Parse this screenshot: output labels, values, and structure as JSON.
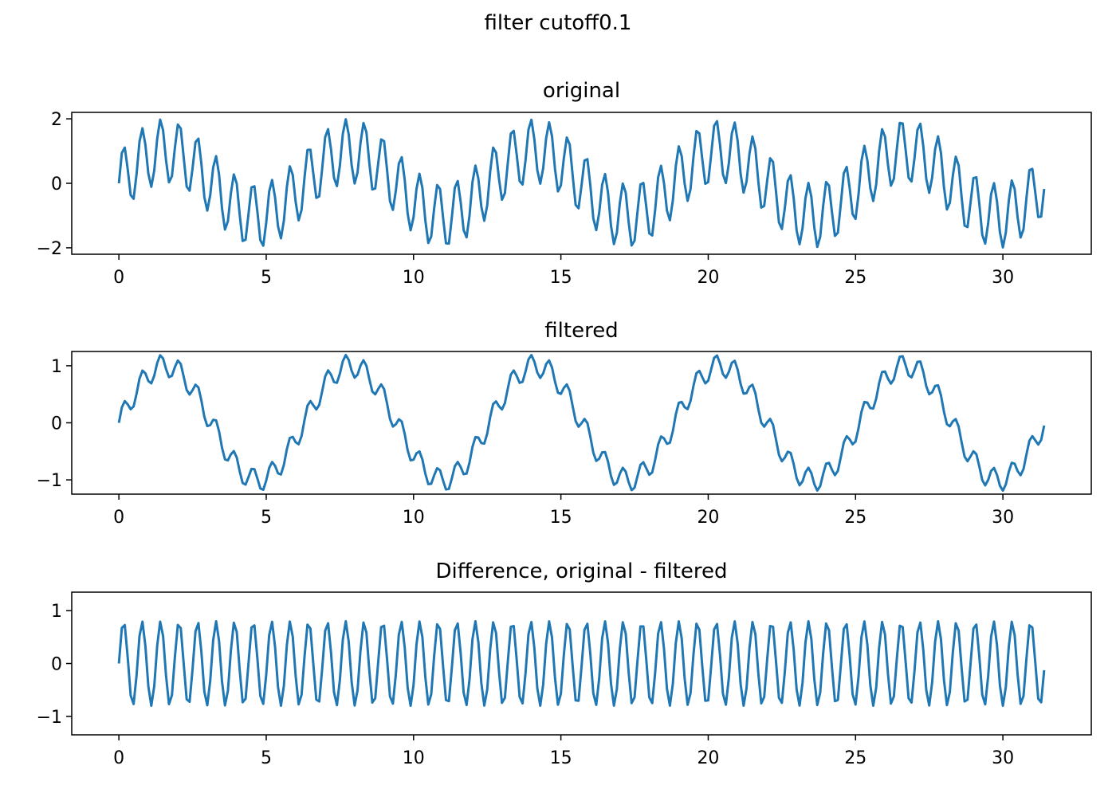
{
  "figure": {
    "title": "filter cutoff0.1"
  },
  "chart_data": [
    {
      "type": "line",
      "title": "original",
      "xlabel": "",
      "ylabel": "",
      "xlim": [
        -1.6,
        33.0
      ],
      "ylim": [
        -2.2,
        2.2
      ],
      "xticks": [
        0,
        5,
        10,
        15,
        20,
        25,
        30
      ],
      "yticks": [
        -2,
        0,
        2
      ],
      "xtick_labels": [
        "0",
        "5",
        "10",
        "15",
        "20",
        "25",
        "30"
      ],
      "ytick_labels": [
        "−2",
        "0",
        "2"
      ],
      "line_color": "#1f77b4",
      "series": [
        {
          "signal": "sin(t) + sin(10t)",
          "x_start": 0,
          "x_end": 31.4,
          "points": 315
        }
      ],
      "grid": false,
      "legend": "none"
    },
    {
      "type": "line",
      "title": "filtered",
      "xlabel": "",
      "ylabel": "",
      "xlim": [
        -1.6,
        33.0
      ],
      "ylim": [
        -1.25,
        1.25
      ],
      "xticks": [
        0,
        5,
        10,
        15,
        20,
        25,
        30
      ],
      "yticks": [
        -1,
        0,
        1
      ],
      "xtick_labels": [
        "0",
        "5",
        "10",
        "15",
        "20",
        "25",
        "30"
      ],
      "ytick_labels": [
        "−1",
        "0",
        "1"
      ],
      "line_color": "#1f77b4",
      "series": [
        {
          "signal": "sin(t) + 0.2 sin(10t)",
          "x_start": 0,
          "x_end": 31.4,
          "points": 315
        }
      ],
      "grid": false,
      "legend": "none"
    },
    {
      "type": "line",
      "title": "Difference, original - filtered",
      "xlabel": "",
      "ylabel": "",
      "xlim": [
        -1.6,
        33.0
      ],
      "ylim": [
        -1.35,
        1.35
      ],
      "xticks": [
        0,
        5,
        10,
        15,
        20,
        25,
        30
      ],
      "yticks": [
        -1,
        0,
        1
      ],
      "xtick_labels": [
        "0",
        "5",
        "10",
        "15",
        "20",
        "25",
        "30"
      ],
      "ytick_labels": [
        "−1",
        "0",
        "1"
      ],
      "line_color": "#1f77b4",
      "series": [
        {
          "signal": "0.8 sin(10t)",
          "x_start": 0,
          "x_end": 31.4,
          "points": 315
        }
      ],
      "grid": false,
      "legend": "none"
    }
  ]
}
